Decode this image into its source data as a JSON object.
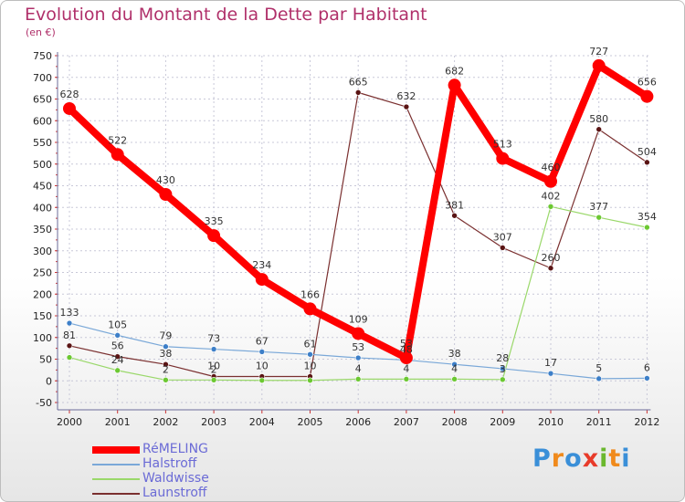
{
  "header": {
    "title": "Evolution du Montant de la Dette par Habitant",
    "unit": "(en €)"
  },
  "colors": {
    "title": "#b0306a",
    "axis": "#222222",
    "grid": "#c8c8d8",
    "axisTick": "#cc3333",
    "legendText": "#6b6bd6",
    "label": "#333333"
  },
  "chart_data": {
    "type": "line",
    "title": "Evolution du Montant de la Dette par Habitant",
    "ylabel": "(en €)",
    "xlabel": "",
    "categories": [
      "2000",
      "2001",
      "2002",
      "2003",
      "2004",
      "2005",
      "2006",
      "2007",
      "2008",
      "2009",
      "2010",
      "2011",
      "2012"
    ],
    "ylim": [
      -50,
      750
    ],
    "yticks": [
      -50,
      0,
      50,
      100,
      150,
      200,
      250,
      300,
      350,
      400,
      450,
      500,
      550,
      600,
      650,
      700,
      750
    ],
    "grid": true,
    "legend_position": "bottom-left",
    "series": [
      {
        "name": "Launstroff",
        "color": "#7a2f2f",
        "markerColor": "#5a1414",
        "width": 1.2,
        "markerR": 3,
        "values": [
          81,
          56,
          38,
          10,
          10,
          10,
          665,
          632,
          381,
          307,
          260,
          580,
          504
        ],
        "labels": [
          "81",
          "56",
          "38",
          "10",
          "10",
          "10",
          "665",
          "632",
          "381",
          "307",
          "260",
          "580",
          "504"
        ]
      },
      {
        "name": "Waldwisse",
        "color": "#9ad86a",
        "markerColor": "#6cc832",
        "width": 1.2,
        "markerR": 3,
        "values": [
          54,
          24,
          2,
          2,
          1,
          1,
          4,
          4,
          4,
          3,
          402,
          377,
          354
        ],
        "labels": [
          "",
          "24",
          "2",
          "2",
          "",
          "",
          "4",
          "4",
          "4",
          "3",
          "402",
          "377",
          "354"
        ]
      },
      {
        "name": "Halstroff",
        "color": "#7aa8d8",
        "markerColor": "#3d7fc8",
        "width": 1.2,
        "markerR": 3,
        "values": [
          133,
          105,
          79,
          73,
          67,
          61,
          53,
          48,
          38,
          28,
          17,
          5,
          6
        ],
        "labels": [
          "133",
          "105",
          "79",
          "73",
          "67",
          "61",
          "53",
          "48",
          "38",
          "28",
          "17",
          "5",
          "6"
        ]
      },
      {
        "name": "RéMELING",
        "color": "#ff0000",
        "markerColor": "#ff0000",
        "width": 8,
        "markerR": 7,
        "values": [
          628,
          522,
          430,
          335,
          234,
          166,
          109,
          53,
          682,
          513,
          460,
          727,
          656
        ],
        "labels": [
          "628",
          "522",
          "430",
          "335",
          "234",
          "166",
          "109",
          "53",
          "682",
          "513",
          "460",
          "727",
          "656"
        ]
      }
    ]
  },
  "legend": {
    "items": [
      {
        "label": "RéMELING",
        "color": "#ff0000"
      },
      {
        "label": "Halstroff",
        "color": "#7aa8d8"
      },
      {
        "label": "Waldwisse",
        "color": "#9ad86a"
      },
      {
        "label": "Launstroff",
        "color": "#7a2f2f"
      }
    ]
  },
  "logo": {
    "text": "Proxiti",
    "letters": [
      "P",
      "r",
      "o",
      "x",
      "i",
      "t",
      "i"
    ],
    "letter_colors": [
      "#3a8fd8",
      "#f08a1c",
      "#3a8fd8",
      "#e83b2a",
      "#6ab82e",
      "#f08a1c",
      "#3a8fd8"
    ]
  }
}
